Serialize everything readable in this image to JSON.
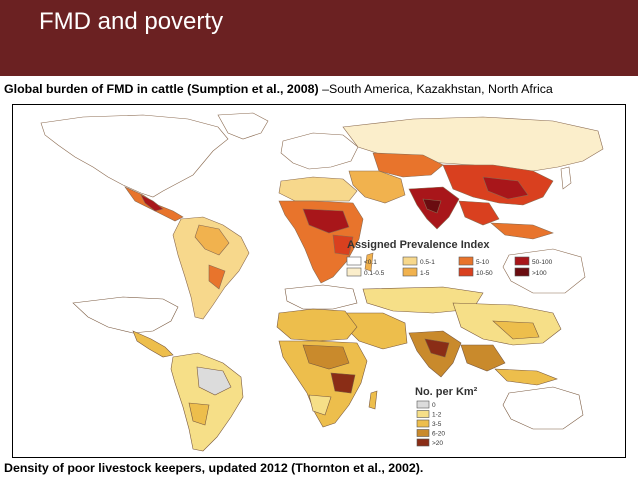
{
  "slide": {
    "title": "FMD and poverty",
    "colors": {
      "title_bar": "#6b2122",
      "title_text": "#ffffff"
    }
  },
  "top_caption": {
    "bold": "Global burden of FMD in cattle (Sumption et al., 2008)",
    "normal": " –South America, Kazakhstan, North Africa"
  },
  "top_map": {
    "legend_title": "Assigned Prevalence Index",
    "legend": [
      {
        "label": "<0.1",
        "color": "#ffffff"
      },
      {
        "label": "0.1-0.5",
        "color": "#fbeecb"
      },
      {
        "label": "0.5-1",
        "color": "#f7d88c"
      },
      {
        "label": "1-5",
        "color": "#f1b24e"
      },
      {
        "label": "5-10",
        "color": "#e8742c"
      },
      {
        "label": "10-50",
        "color": "#d9401f"
      },
      {
        "label": "50-100",
        "color": "#a8161a"
      },
      {
        "label": ">100",
        "color": "#6a0c10"
      }
    ]
  },
  "bottom_map": {
    "legend_title": "No. per Km²",
    "legend": [
      {
        "label": "0",
        "color": "#dcdcdc"
      },
      {
        "label": "1-2",
        "color": "#f6df88"
      },
      {
        "label": "3-5",
        "color": "#edbe4c"
      },
      {
        "label": "6-20",
        "color": "#c98a2c"
      },
      {
        "label": ">20",
        "color": "#8a2d16"
      }
    ]
  },
  "bottom_caption": {
    "bold": "Density of poor livestock keepers, updated 2012 (Thornton et al., 2002)."
  }
}
